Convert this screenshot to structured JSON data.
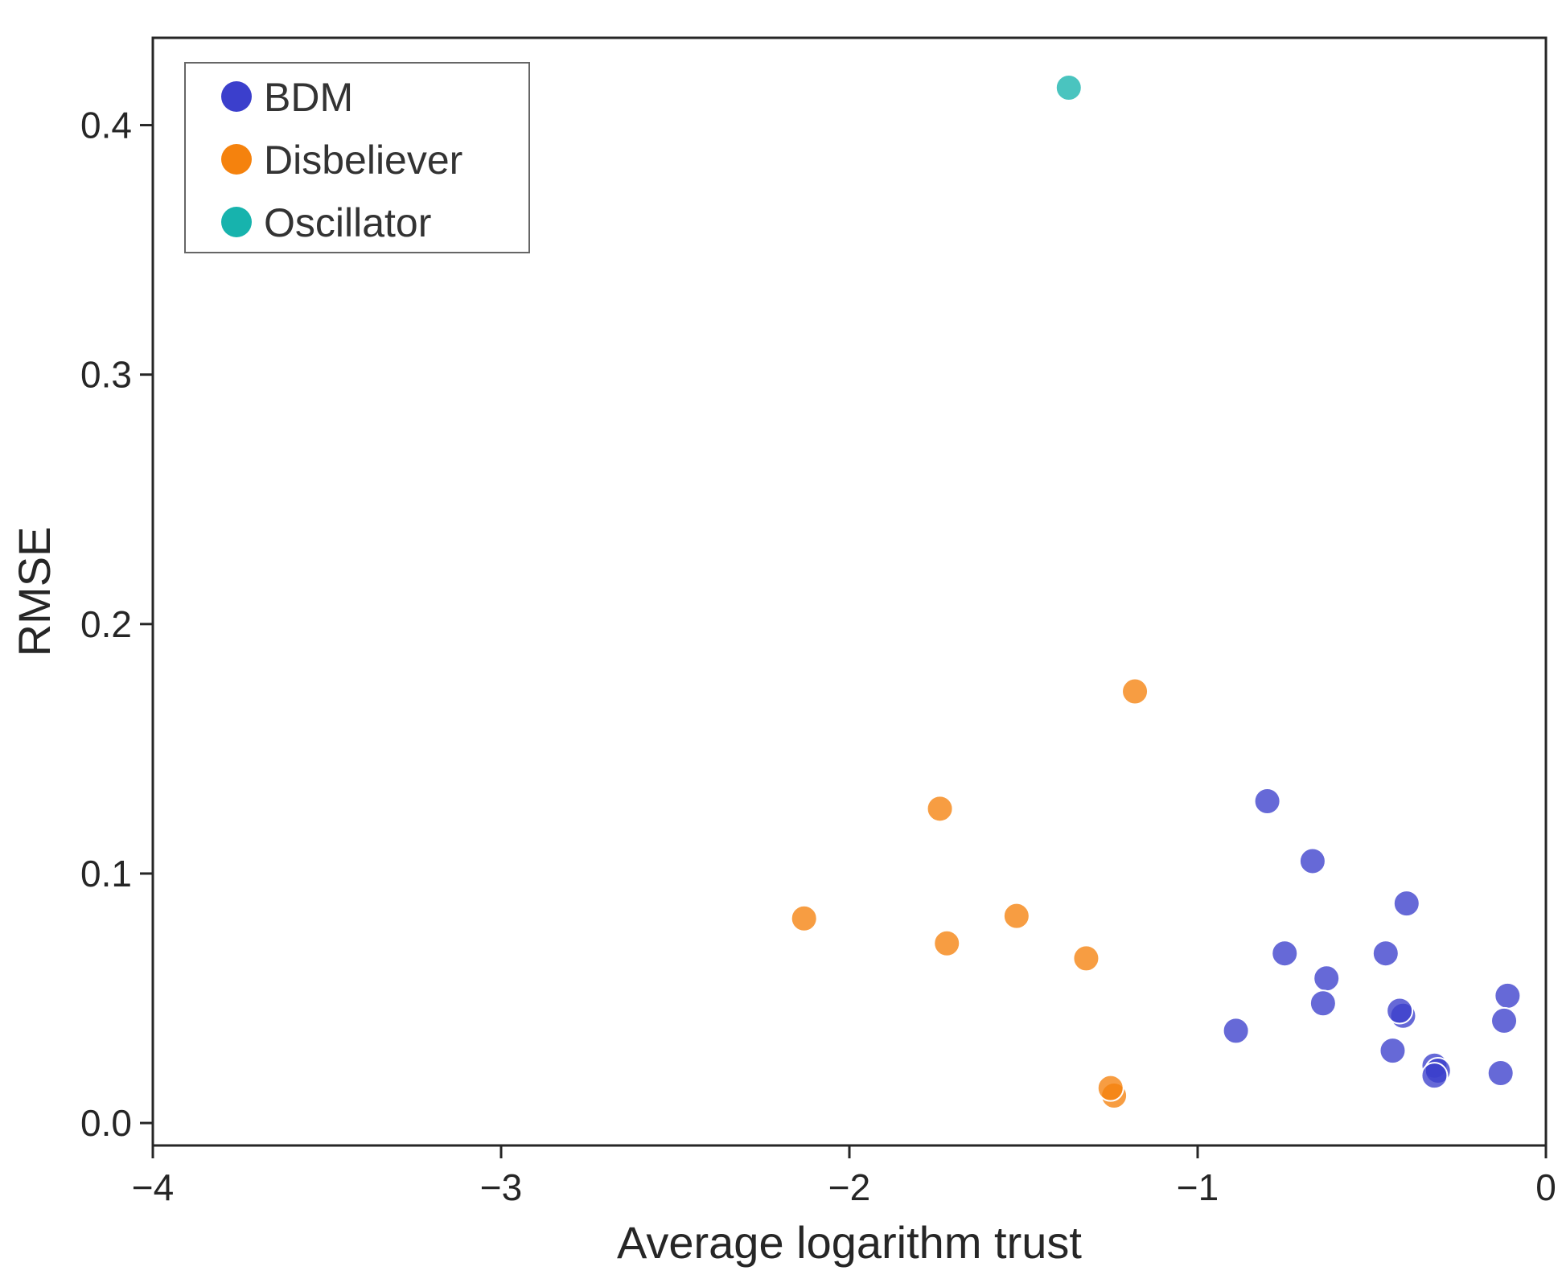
{
  "chart_data": {
    "type": "scatter",
    "title": "",
    "xlabel": "Average logarithm trust",
    "ylabel": "RMSE",
    "xlim": [
      -4,
      0
    ],
    "ylim": [
      -0.009,
      0.435
    ],
    "xticks": [
      -4,
      -3,
      -2,
      -1,
      0
    ],
    "xtick_labels": [
      "−4",
      "−3",
      "−2",
      "−1",
      "0"
    ],
    "yticks": [
      0.0,
      0.1,
      0.2,
      0.3,
      0.4
    ],
    "ytick_labels": [
      "0.0",
      "0.1",
      "0.2",
      "0.3",
      "0.4"
    ],
    "grid": false,
    "legend_position": "top-left",
    "series": [
      {
        "name": "BDM",
        "color": "#3b3fcc",
        "points": [
          {
            "x": -0.8,
            "y": 0.129
          },
          {
            "x": -0.67,
            "y": 0.105
          },
          {
            "x": -0.4,
            "y": 0.088
          },
          {
            "x": -0.75,
            "y": 0.068
          },
          {
            "x": -0.46,
            "y": 0.068
          },
          {
            "x": -0.63,
            "y": 0.058
          },
          {
            "x": -0.64,
            "y": 0.048
          },
          {
            "x": -0.11,
            "y": 0.051
          },
          {
            "x": -0.12,
            "y": 0.041
          },
          {
            "x": -0.41,
            "y": 0.043
          },
          {
            "x": -0.42,
            "y": 0.045
          },
          {
            "x": -0.89,
            "y": 0.037
          },
          {
            "x": -0.44,
            "y": 0.029
          },
          {
            "x": -0.32,
            "y": 0.023
          },
          {
            "x": -0.31,
            "y": 0.021
          },
          {
            "x": -0.32,
            "y": 0.019
          },
          {
            "x": -0.13,
            "y": 0.02
          }
        ]
      },
      {
        "name": "Disbeliever",
        "color": "#f5820d",
        "points": [
          {
            "x": -1.18,
            "y": 0.173
          },
          {
            "x": -1.74,
            "y": 0.126
          },
          {
            "x": -2.13,
            "y": 0.082
          },
          {
            "x": -1.52,
            "y": 0.083
          },
          {
            "x": -1.72,
            "y": 0.072
          },
          {
            "x": -1.32,
            "y": 0.066
          },
          {
            "x": -1.24,
            "y": 0.011
          },
          {
            "x": -1.25,
            "y": 0.014
          }
        ]
      },
      {
        "name": "Oscillator",
        "color": "#17b3ad",
        "points": [
          {
            "x": -1.37,
            "y": 0.415
          }
        ]
      }
    ]
  }
}
